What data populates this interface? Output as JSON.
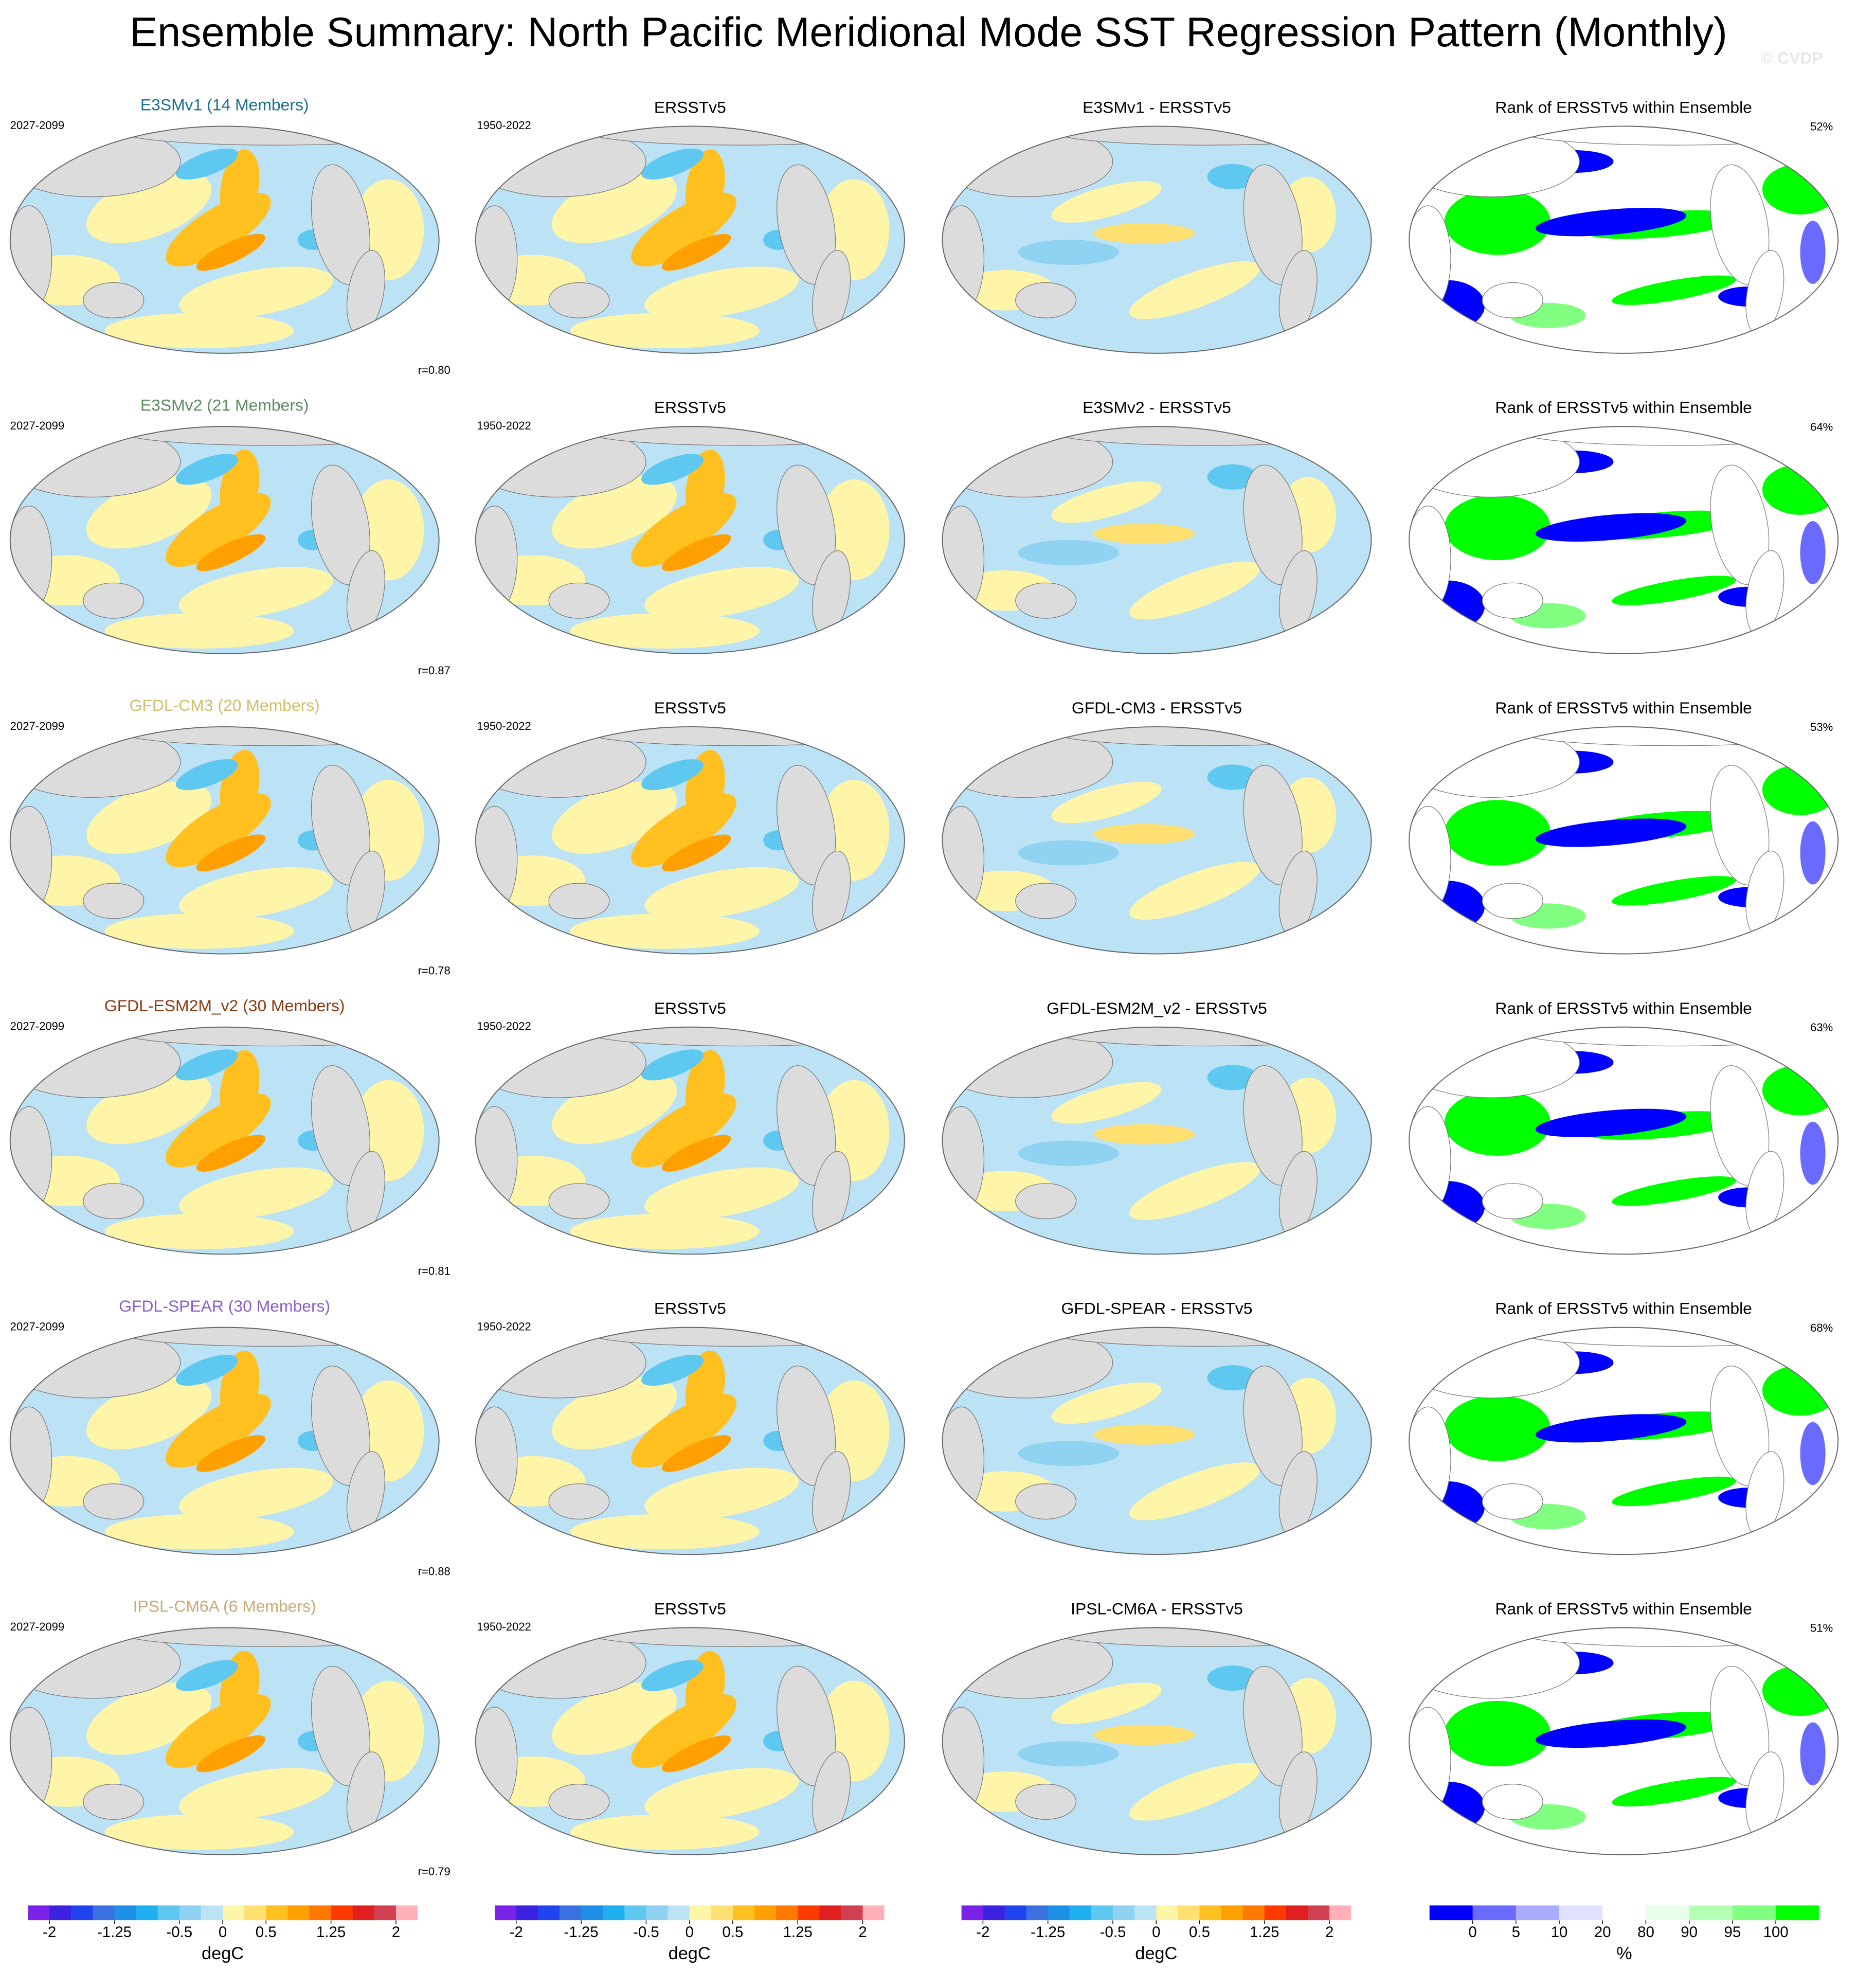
{
  "chart_data": {
    "type": "map-grid",
    "title": "Ensemble Summary: North Pacific Meridional Mode SST Regression Pattern (Monthly)",
    "watermark": "© CVDP",
    "rows": [
      {
        "model_title": "E3SMv1 (14 Members)",
        "color": "#1a6f8f",
        "model_period": "2027-2099",
        "obs_title": "ERSSTv5",
        "obs_period": "1950-2022",
        "diff_title": "E3SMv1 - ERSSTv5",
        "rank_title": "Rank of ERSSTv5 within Ensemble",
        "r": "r=0.80",
        "rank_pct": "52%"
      },
      {
        "model_title": "E3SMv2 (21 Members)",
        "color": "#5e8c62",
        "model_period": "2027-2099",
        "obs_title": "ERSSTv5",
        "obs_period": "1950-2022",
        "diff_title": "E3SMv2 - ERSSTv5",
        "rank_title": "Rank of ERSSTv5 within Ensemble",
        "r": "r=0.87",
        "rank_pct": "64%"
      },
      {
        "model_title": "GFDL-CM3 (20 Members)",
        "color": "#d2bd6a",
        "model_period": "2027-2099",
        "obs_title": "ERSSTv5",
        "obs_period": "1950-2022",
        "diff_title": "GFDL-CM3 - ERSSTv5",
        "rank_title": "Rank of ERSSTv5 within Ensemble",
        "r": "r=0.78",
        "rank_pct": "53%"
      },
      {
        "model_title": "GFDL-ESM2M_v2 (30 Members)",
        "color": "#8b3a10",
        "model_period": "2027-2099",
        "obs_title": "ERSSTv5",
        "obs_period": "1950-2022",
        "diff_title": "GFDL-ESM2M_v2 - ERSSTv5",
        "rank_title": "Rank of ERSSTv5 within Ensemble",
        "r": "r=0.81",
        "rank_pct": "63%"
      },
      {
        "model_title": "GFDL-SPEAR (30 Members)",
        "color": "#8a5fc8",
        "model_period": "2027-2099",
        "obs_title": "ERSSTv5",
        "obs_period": "1950-2022",
        "diff_title": "GFDL-SPEAR - ERSSTv5",
        "rank_title": "Rank of ERSSTv5 within Ensemble",
        "r": "r=0.88",
        "rank_pct": "68%"
      },
      {
        "model_title": "IPSL-CM6A (6 Members)",
        "color": "#c8a874",
        "model_period": "2027-2099",
        "obs_title": "ERSSTv5",
        "obs_period": "1950-2022",
        "diff_title": "IPSL-CM6A - ERSSTv5",
        "rank_title": "Rank of ERSSTv5 within Ensemble",
        "r": "r=0.79",
        "rank_pct": "51%"
      }
    ],
    "colorbars": [
      {
        "unit": "degC",
        "lim": [
          -2.25,
          2.25
        ],
        "ticks": [
          -2,
          -1.25,
          -0.5,
          0,
          0.5,
          1.25,
          2
        ],
        "colors": [
          "#7a22e8",
          "#3c22e0",
          "#2244f0",
          "#3a70e0",
          "#1e90e8",
          "#1eb0f0",
          "#5ec8f0",
          "#90d2f2",
          "#bce2f5",
          "#fff5a8",
          "#ffe070",
          "#ffc020",
          "#ffa000",
          "#ff7800",
          "#ff3a00",
          "#e02020",
          "#d04050",
          "#ffb0b8"
        ]
      },
      {
        "unit": "degC",
        "lim": [
          -2.25,
          2.25
        ],
        "ticks": [
          -2,
          -1.25,
          -0.5,
          0,
          0.5,
          1.25,
          2
        ],
        "colors": [
          "#7a22e8",
          "#3c22e0",
          "#2244f0",
          "#3a70e0",
          "#1e90e8",
          "#1eb0f0",
          "#5ec8f0",
          "#90d2f2",
          "#bce2f5",
          "#fff5a8",
          "#ffe070",
          "#ffc020",
          "#ffa000",
          "#ff7800",
          "#ff3a00",
          "#e02020",
          "#d04050",
          "#ffb0b8"
        ]
      },
      {
        "unit": "degC",
        "lim": [
          -2.25,
          2.25
        ],
        "ticks": [
          -2,
          -1.25,
          -0.5,
          0,
          0.5,
          1.25,
          2
        ],
        "colors": [
          "#7a22e8",
          "#3c22e0",
          "#2244f0",
          "#3a70e0",
          "#1e90e8",
          "#1eb0f0",
          "#5ec8f0",
          "#90d2f2",
          "#bce2f5",
          "#fff5a8",
          "#ffe070",
          "#ffc020",
          "#ffa000",
          "#ff7800",
          "#ff3a00",
          "#e02020",
          "#d04050",
          "#ffb0b8"
        ]
      },
      {
        "unit": "%",
        "ticks": [
          0,
          5,
          10,
          20,
          80,
          90,
          95,
          100
        ],
        "colors": [
          "#0000ff",
          "#6a6aff",
          "#aaaaff",
          "#e0e0ff",
          "#ffffff",
          "#eaffea",
          "#b4ffb4",
          "#80ff80",
          "#00ff00"
        ]
      }
    ]
  }
}
